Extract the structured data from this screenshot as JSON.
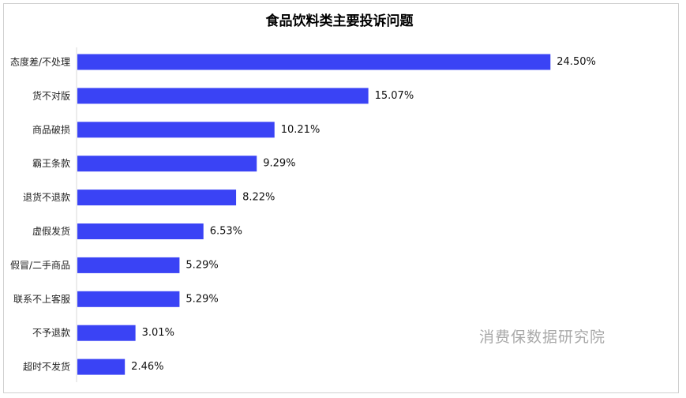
{
  "chart_data": {
    "type": "bar",
    "orientation": "horizontal",
    "title": "食品饮料类主要投诉问题",
    "categories": [
      "态度差/不处理",
      "货不对版",
      "商品破损",
      "霸王条款",
      "退货不退款",
      "虚假发货",
      "假冒/二手商品",
      "联系不上客服",
      "不予退款",
      "超时不发货"
    ],
    "values": [
      24.5,
      15.07,
      10.21,
      9.29,
      8.22,
      6.53,
      5.29,
      5.29,
      3.01,
      2.46
    ],
    "value_labels": [
      "24.50%",
      "15.07%",
      "10.21%",
      "9.29%",
      "8.22%",
      "6.53%",
      "5.29%",
      "5.29%",
      "3.01%",
      "2.46%"
    ],
    "bar_color": "#3a43f5",
    "xlabel": "",
    "ylabel": "",
    "xlim": [
      0,
      27.8
    ],
    "grid": false,
    "legend": "none"
  },
  "watermark": "消费保数据研究院"
}
